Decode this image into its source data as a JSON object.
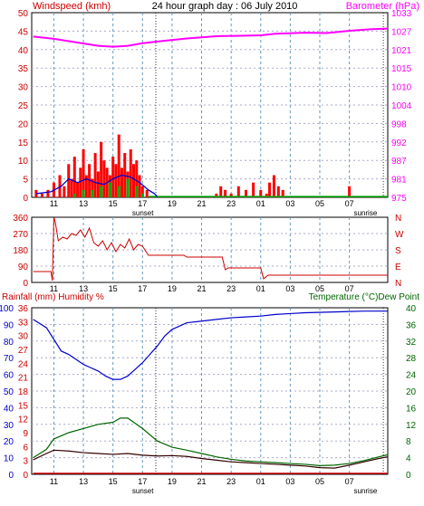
{
  "header": {
    "left_title": "Windspeed (kmh)",
    "center_title": "24 hour graph day : 06 July 2010",
    "right_title": "Barometer (hPa)"
  },
  "colors": {
    "red": "#cc0000",
    "magenta": "#ff00ff",
    "blue": "#0000cc",
    "green": "#006600",
    "gust": "#ff0000",
    "wind_green": "#00aa00",
    "dark": "#330000",
    "grid_dash": "#6699bb",
    "grid_h": "#aaaacc"
  },
  "x_ticks": [
    "11",
    "13",
    "15",
    "17",
    "19",
    "21",
    "23",
    "01",
    "03",
    "05",
    "07"
  ],
  "labels": {
    "sunset": "sunset",
    "sunrise": "sunrise"
  },
  "chart_data": [
    {
      "type": "bar",
      "name": "wind-barometer-panel",
      "ylabel": "Windspeed (kmh)",
      "ylabel_right": "Barometer (hPa)",
      "ylim": [
        0,
        50
      ],
      "yticks": [
        0,
        5,
        10,
        15,
        20,
        25,
        30,
        35,
        40,
        45,
        50
      ],
      "yticks_right": [
        "975",
        "981",
        "987",
        "992",
        "998",
        "1004",
        "1010",
        "1015",
        "1021",
        "1027",
        "1033"
      ],
      "ylim_right": [
        975,
        1033
      ],
      "x_hours": [
        9.5,
        33.6
      ],
      "gust_bars": [
        [
          9.8,
          2
        ],
        [
          10.2,
          1
        ],
        [
          10.6,
          2
        ],
        [
          11.0,
          4
        ],
        [
          11.4,
          6
        ],
        [
          11.7,
          3
        ],
        [
          12.0,
          9
        ],
        [
          12.2,
          5
        ],
        [
          12.4,
          11
        ],
        [
          12.6,
          4
        ],
        [
          12.8,
          8
        ],
        [
          13.0,
          13
        ],
        [
          13.2,
          6
        ],
        [
          13.4,
          9
        ],
        [
          13.6,
          5
        ],
        [
          13.8,
          12
        ],
        [
          14.0,
          7
        ],
        [
          14.2,
          15
        ],
        [
          14.4,
          10
        ],
        [
          14.6,
          8
        ],
        [
          14.8,
          6
        ],
        [
          15.0,
          11
        ],
        [
          15.2,
          9
        ],
        [
          15.4,
          17
        ],
        [
          15.6,
          8
        ],
        [
          15.8,
          12
        ],
        [
          16.0,
          7
        ],
        [
          16.2,
          13
        ],
        [
          16.4,
          9
        ],
        [
          16.6,
          10
        ],
        [
          16.8,
          6
        ],
        [
          17.0,
          3
        ],
        [
          17.3,
          2
        ],
        [
          22.0,
          1
        ],
        [
          22.3,
          3
        ],
        [
          22.6,
          2
        ],
        [
          23.0,
          1
        ],
        [
          23.5,
          3
        ],
        [
          24.0,
          2
        ],
        [
          24.5,
          4
        ],
        [
          25.0,
          2
        ],
        [
          25.4,
          1
        ],
        [
          25.6,
          4
        ],
        [
          25.9,
          6
        ],
        [
          26.2,
          3
        ],
        [
          26.5,
          2
        ],
        [
          31.0,
          3
        ]
      ],
      "wind_bars": [
        [
          12.4,
          1
        ],
        [
          13.0,
          2
        ],
        [
          13.6,
          2
        ],
        [
          14.2,
          3
        ],
        [
          14.8,
          4
        ],
        [
          15.4,
          3
        ],
        [
          16.0,
          5
        ],
        [
          16.6,
          3
        ],
        [
          17.0,
          1
        ]
      ],
      "avg_wind": [
        [
          9.8,
          1
        ],
        [
          10.8,
          1.5
        ],
        [
          11.5,
          3
        ],
        [
          12.0,
          5
        ],
        [
          12.6,
          4
        ],
        [
          13.2,
          5
        ],
        [
          13.8,
          4
        ],
        [
          14.4,
          3.5
        ],
        [
          15.0,
          5
        ],
        [
          15.6,
          6
        ],
        [
          16.2,
          5.5
        ],
        [
          16.8,
          4
        ],
        [
          17.4,
          2
        ],
        [
          17.8,
          1
        ],
        [
          18.0,
          0.2
        ]
      ],
      "barometer": [
        [
          9.6,
          1025.5
        ],
        [
          11.0,
          1024.8
        ],
        [
          12.5,
          1023.7
        ],
        [
          14.0,
          1022.6
        ],
        [
          15.0,
          1022.3
        ],
        [
          16.0,
          1022.6
        ],
        [
          17.0,
          1023.4
        ],
        [
          18.5,
          1024.2
        ],
        [
          20.0,
          1024.9
        ],
        [
          22.0,
          1025.6
        ],
        [
          24.0,
          1025.8
        ],
        [
          25.0,
          1025.9
        ],
        [
          26.0,
          1026.4
        ],
        [
          28.0,
          1026.7
        ],
        [
          29.5,
          1026.6
        ],
        [
          31.0,
          1027.3
        ],
        [
          32.5,
          1027.8
        ],
        [
          33.6,
          1028.0
        ]
      ]
    },
    {
      "type": "line",
      "name": "wind-direction-panel",
      "ylabel": "",
      "ylim": [
        0,
        360
      ],
      "yticks": [
        0,
        90,
        180,
        270,
        360
      ],
      "ylabel_right_compass": [
        "N",
        "W",
        "S",
        "E",
        "N"
      ],
      "direction": [
        [
          9.6,
          60
        ],
        [
          10.8,
          60
        ],
        [
          10.9,
          10
        ],
        [
          11.0,
          360
        ],
        [
          11.1,
          330
        ],
        [
          11.3,
          230
        ],
        [
          11.6,
          250
        ],
        [
          11.9,
          240
        ],
        [
          12.2,
          270
        ],
        [
          12.5,
          260
        ],
        [
          12.8,
          290
        ],
        [
          13.1,
          250
        ],
        [
          13.4,
          300
        ],
        [
          13.7,
          220
        ],
        [
          14.0,
          200
        ],
        [
          14.3,
          230
        ],
        [
          14.6,
          180
        ],
        [
          14.9,
          220
        ],
        [
          15.2,
          170
        ],
        [
          15.5,
          210
        ],
        [
          15.8,
          190
        ],
        [
          16.1,
          240
        ],
        [
          16.4,
          180
        ],
        [
          16.7,
          210
        ],
        [
          17.0,
          200
        ],
        [
          17.4,
          150
        ],
        [
          19.8,
          150
        ],
        [
          20.0,
          140
        ],
        [
          22.4,
          140
        ],
        [
          22.6,
          70
        ],
        [
          22.8,
          80
        ],
        [
          25.0,
          80
        ],
        [
          25.2,
          20
        ],
        [
          25.5,
          40
        ],
        [
          33.6,
          40
        ]
      ]
    },
    {
      "type": "line",
      "name": "rain-humidity-temperature-panel",
      "ylabel": "Rainfall (mm)  Humidity %",
      "ylabel_right": "Temperature (°C)Dew Point",
      "ylim": [
        0,
        100
      ],
      "yticks": [
        0,
        10,
        20,
        30,
        40,
        50,
        60,
        70,
        80,
        90,
        100
      ],
      "yticks_rain": [
        "0",
        "3",
        "6",
        "9",
        "12",
        "15",
        "18",
        "21",
        "24",
        "27",
        "30",
        "33",
        "36"
      ],
      "yticks_right": [
        "0",
        "2",
        "4",
        "6",
        "8",
        "10",
        "12",
        "14",
        "16",
        "18",
        "20",
        "22",
        "24",
        "26",
        "28",
        "30",
        "32",
        "34",
        "36",
        "38",
        "40"
      ],
      "ylim_right": [
        0,
        40
      ],
      "humidity": [
        [
          9.6,
          93
        ],
        [
          10.5,
          88
        ],
        [
          11.0,
          81
        ],
        [
          11.5,
          74
        ],
        [
          12.0,
          72
        ],
        [
          12.5,
          69
        ],
        [
          13.0,
          66
        ],
        [
          13.5,
          64
        ],
        [
          14.0,
          62
        ],
        [
          14.5,
          59
        ],
        [
          15.0,
          57
        ],
        [
          15.5,
          57
        ],
        [
          16.0,
          59
        ],
        [
          16.5,
          63
        ],
        [
          17.0,
          67
        ],
        [
          17.5,
          72
        ],
        [
          18.0,
          77
        ],
        [
          18.5,
          83
        ],
        [
          19.0,
          87
        ],
        [
          20.0,
          91
        ],
        [
          21.0,
          92
        ],
        [
          22.0,
          93
        ],
        [
          23.0,
          94
        ],
        [
          24.0,
          94.5
        ],
        [
          25.0,
          95
        ],
        [
          26.0,
          96
        ],
        [
          27.0,
          96.5
        ],
        [
          28.0,
          97
        ],
        [
          30.0,
          97.5
        ],
        [
          32.0,
          98
        ],
        [
          33.6,
          98
        ]
      ],
      "temperature": [
        [
          9.6,
          4
        ],
        [
          10.5,
          6
        ],
        [
          11.0,
          8.5
        ],
        [
          12.0,
          10
        ],
        [
          13.0,
          11
        ],
        [
          14.0,
          12
        ],
        [
          15.0,
          12.5
        ],
        [
          15.5,
          13.5
        ],
        [
          16.0,
          13.5
        ],
        [
          17.0,
          11
        ],
        [
          18.0,
          8
        ],
        [
          19.0,
          6.5
        ],
        [
          20.0,
          5.8
        ],
        [
          21.0,
          5
        ],
        [
          22.0,
          4.2
        ],
        [
          23.0,
          3.6
        ],
        [
          24.0,
          3.2
        ],
        [
          25.0,
          3
        ],
        [
          26.0,
          2.8
        ],
        [
          27.0,
          2.6
        ],
        [
          28.0,
          2.4
        ],
        [
          29.0,
          2.1
        ],
        [
          30.0,
          2.2
        ],
        [
          31.0,
          2.6
        ],
        [
          32.0,
          3.3
        ],
        [
          33.0,
          4.2
        ],
        [
          33.6,
          4.7
        ]
      ],
      "dew_point": [
        [
          9.6,
          3.5
        ],
        [
          10.5,
          5
        ],
        [
          11.0,
          5.8
        ],
        [
          12.0,
          5.6
        ],
        [
          13.0,
          5.2
        ],
        [
          14.0,
          5.0
        ],
        [
          15.0,
          4.8
        ],
        [
          16.0,
          5
        ],
        [
          17.0,
          4.6
        ],
        [
          18.0,
          4.4
        ],
        [
          19.0,
          4.5
        ],
        [
          20.0,
          4.3
        ],
        [
          21.0,
          3.8
        ],
        [
          22.0,
          3.4
        ],
        [
          23.0,
          3
        ],
        [
          24.0,
          2.8
        ],
        [
          25.0,
          2.6
        ],
        [
          26.0,
          2.4
        ],
        [
          27.0,
          2.2
        ],
        [
          28.0,
          2.0
        ],
        [
          29.0,
          1.6
        ],
        [
          30.0,
          1.5
        ],
        [
          31.0,
          2.2
        ],
        [
          32.0,
          3
        ],
        [
          33.0,
          3.8
        ],
        [
          33.6,
          4.2
        ]
      ],
      "rain": [
        [
          9.6,
          0
        ],
        [
          33.6,
          0
        ]
      ]
    }
  ]
}
